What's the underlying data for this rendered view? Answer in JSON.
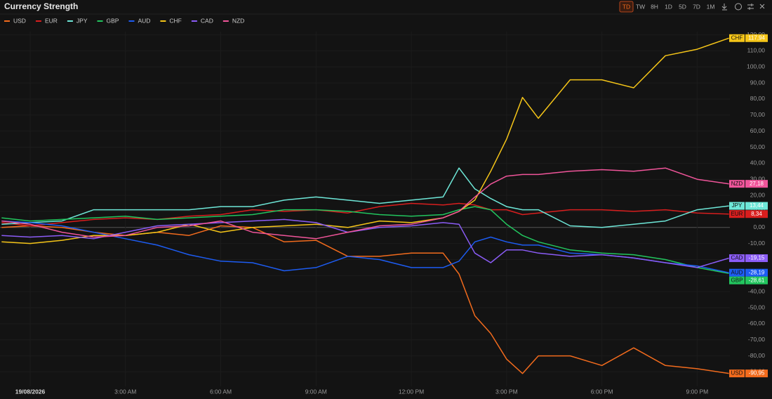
{
  "header": {
    "title": "Currency Strength",
    "toolbar": [
      "TD",
      "TW",
      "8H",
      "1D",
      "5D",
      "7D",
      "1M"
    ],
    "active": "TD"
  },
  "chart_data": {
    "type": "line",
    "x": [
      -0.9,
      0,
      1,
      2,
      3,
      4,
      5,
      6,
      7,
      8,
      9,
      10,
      11,
      12,
      13,
      13.5,
      14,
      14.5,
      15,
      15.5,
      16,
      17,
      18,
      19,
      20,
      21,
      22
    ],
    "xlim": [
      -0.95,
      22.03
    ],
    "xticks": [
      {
        "value": 0,
        "label": "19/08/2026"
      },
      {
        "value": 3,
        "label": "3:00 AM"
      },
      {
        "value": 6,
        "label": "6:00 AM"
      },
      {
        "value": 9,
        "label": "9:00 AM"
      },
      {
        "value": 12,
        "label": "12:00 PM"
      },
      {
        "value": 15,
        "label": "3:00 PM"
      },
      {
        "value": 18,
        "label": "6:00 PM"
      },
      {
        "value": 21,
        "label": "9:00 PM"
      }
    ],
    "ylim": [
      -99,
      122
    ],
    "yticks": [
      {
        "value": -90,
        "label": "-90,00"
      },
      {
        "value": -80,
        "label": "-80,00"
      },
      {
        "value": -70,
        "label": "-70,00"
      },
      {
        "value": -60,
        "label": "-60,00"
      },
      {
        "value": -50,
        "label": "-50,00"
      },
      {
        "value": -40,
        "label": "-40,00"
      },
      {
        "value": -30,
        "label": "-30,00"
      },
      {
        "value": -20,
        "label": "-20,00"
      },
      {
        "value": -10,
        "label": "-10,00"
      },
      {
        "value": 0,
        "label": "0,00"
      },
      {
        "value": 10,
        "label": "10,00"
      },
      {
        "value": 20,
        "label": "20,00"
      },
      {
        "value": 30,
        "label": "30,00"
      },
      {
        "value": 40,
        "label": "40,00"
      },
      {
        "value": 50,
        "label": "50,00"
      },
      {
        "value": 60,
        "label": "60,00"
      },
      {
        "value": 70,
        "label": "70,00"
      },
      {
        "value": 80,
        "label": "80,00"
      },
      {
        "value": 90,
        "label": "90,00"
      },
      {
        "value": 100,
        "label": "100,00"
      },
      {
        "value": 110,
        "label": "110,00"
      },
      {
        "value": 120,
        "label": "120,00"
      }
    ],
    "grid": true,
    "series": [
      {
        "name": "USD",
        "color": "#f26b1d",
        "values": [
          0,
          1,
          0,
          -3,
          -5,
          -3,
          -5,
          1,
          0,
          -9,
          -8,
          -18,
          -18,
          -16,
          -16,
          -29,
          -55,
          -66,
          -82,
          -91,
          -80,
          -80,
          -86,
          -75,
          -86,
          -88,
          -90.95
        ],
        "value_labels": [
          null,
          null,
          null,
          null,
          null,
          null,
          null,
          null,
          null,
          null,
          null,
          null,
          null,
          null,
          null,
          null,
          null,
          null,
          null,
          null,
          null,
          null,
          null,
          null,
          null,
          null,
          "-90,95"
        ]
      },
      {
        "name": "EUR",
        "color": "#d81e1e",
        "values": [
          3,
          1,
          3,
          5,
          6,
          5,
          7,
          8,
          11,
          10,
          11,
          9,
          13,
          15,
          14,
          15,
          14,
          11,
          11,
          8,
          9,
          11,
          11,
          10,
          11,
          9,
          8.34
        ],
        "value_labels": [
          null,
          null,
          null,
          null,
          null,
          null,
          null,
          null,
          null,
          null,
          null,
          null,
          null,
          null,
          null,
          null,
          null,
          null,
          null,
          null,
          null,
          null,
          null,
          null,
          null,
          null,
          "8,34"
        ]
      },
      {
        "name": "JPY",
        "color": "#6ee7d8",
        "values": [
          2,
          3,
          4,
          11,
          11,
          11,
          11,
          13,
          13,
          17,
          19,
          17,
          15,
          17,
          19,
          37,
          24,
          18,
          13,
          11,
          11,
          1,
          0,
          2,
          4,
          11,
          13.44
        ],
        "value_labels": [
          null,
          null,
          null,
          null,
          null,
          null,
          null,
          null,
          null,
          null,
          null,
          null,
          null,
          null,
          null,
          null,
          null,
          null,
          null,
          null,
          null,
          null,
          null,
          null,
          null,
          null,
          "13,44"
        ]
      },
      {
        "name": "GBP",
        "color": "#22c55e",
        "values": [
          6,
          4,
          5,
          6,
          7,
          5,
          6,
          7,
          8,
          11,
          11,
          10,
          8,
          7,
          8,
          11,
          13,
          11,
          2,
          -5,
          -9,
          -14,
          -16,
          -17,
          -20,
          -25,
          -28.61
        ],
        "value_labels": [
          null,
          null,
          null,
          null,
          null,
          null,
          null,
          null,
          null,
          null,
          null,
          null,
          null,
          null,
          null,
          null,
          null,
          null,
          null,
          null,
          null,
          null,
          null,
          null,
          null,
          null,
          "-28,61"
        ]
      },
      {
        "name": "AUD",
        "color": "#1d5cf2",
        "values": [
          4,
          3,
          1,
          -3,
          -7,
          -11,
          -17,
          -21,
          -22,
          -27,
          -25,
          -18,
          -20,
          -25,
          -25,
          -21,
          -9,
          -6,
          -9,
          -11,
          -11,
          -16,
          -17,
          -19,
          -22,
          -24,
          -28.19
        ],
        "value_labels": [
          null,
          null,
          null,
          null,
          null,
          null,
          null,
          null,
          null,
          null,
          null,
          null,
          null,
          null,
          null,
          null,
          null,
          null,
          null,
          null,
          null,
          null,
          null,
          null,
          null,
          null,
          "-28,19"
        ]
      },
      {
        "name": "CHF",
        "color": "#f5c518",
        "values": [
          -9,
          -10,
          -8,
          -5,
          -5,
          -3,
          2,
          -3,
          0,
          1,
          2,
          0,
          4,
          3,
          6,
          10,
          17,
          35,
          55,
          81,
          68,
          92,
          92,
          87,
          107,
          111,
          117.94
        ],
        "value_labels": [
          null,
          null,
          null,
          null,
          null,
          null,
          null,
          null,
          null,
          null,
          null,
          null,
          null,
          null,
          null,
          null,
          null,
          null,
          null,
          null,
          null,
          null,
          null,
          null,
          null,
          null,
          "117,94"
        ]
      },
      {
        "name": "CAD",
        "color": "#8b5cf6",
        "values": [
          -5,
          -6,
          -5,
          -7,
          -3,
          1,
          2,
          3,
          4,
          5,
          3,
          -3,
          0,
          1,
          3,
          2,
          -16,
          -22,
          -14,
          -14,
          -16,
          -18,
          -17,
          -19,
          -22,
          -25,
          -19.15
        ],
        "value_labels": [
          null,
          null,
          null,
          null,
          null,
          null,
          null,
          null,
          null,
          null,
          null,
          null,
          null,
          null,
          null,
          null,
          null,
          null,
          null,
          null,
          null,
          null,
          null,
          null,
          null,
          null,
          "-19,15"
        ]
      },
      {
        "name": "NZD",
        "color": "#f0559a",
        "values": [
          4,
          2,
          -3,
          -6,
          -5,
          0,
          1,
          4,
          -3,
          -5,
          -7,
          -3,
          1,
          2,
          6,
          10,
          19,
          27,
          32,
          33,
          33,
          35,
          36,
          35,
          37,
          30,
          27.18
        ],
        "value_labels": [
          null,
          null,
          null,
          null,
          null,
          null,
          null,
          null,
          null,
          null,
          null,
          null,
          null,
          null,
          null,
          null,
          null,
          null,
          null,
          null,
          null,
          null,
          null,
          null,
          null,
          null,
          "27,18"
        ]
      }
    ]
  }
}
